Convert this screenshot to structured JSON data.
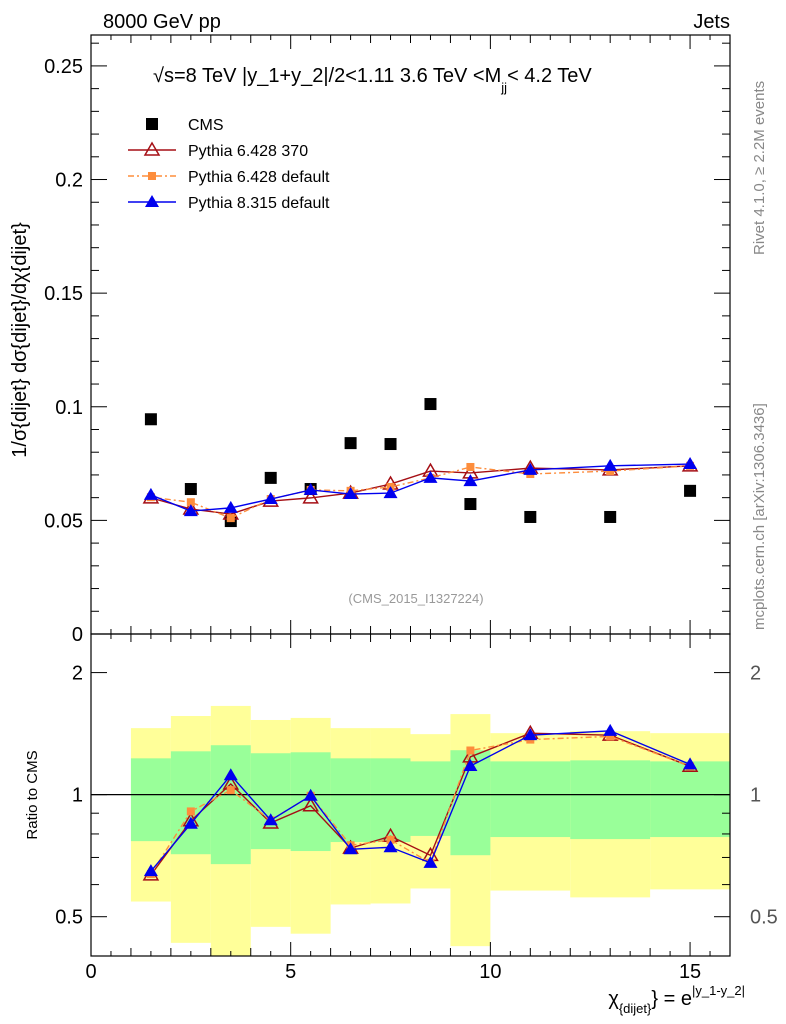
{
  "header": {
    "left": "8000 GeV pp",
    "right": "Jets"
  },
  "side_text": {
    "top": "Rivet 4.1.0, ≥ 2.2M events",
    "bottom": "mcplots.cern.ch [arXiv:1306.3436]"
  },
  "chart_data": [
    {
      "type": "scatter",
      "title": "√s=8 TeV |y_1+y_2|/2<1.11 3.6 TeV <M",
      "title_sub": "jj",
      "title_end": "< 4.2 TeV",
      "ylabel": "1/σ{dijet} dσ{dijet}/dχ{dijet}",
      "analysis_label": "(CMS_2015_I1327224)",
      "xlim": [
        0,
        16
      ],
      "ylim": [
        0,
        0.2636
      ],
      "yticks": [
        0,
        0.05,
        0.1,
        0.15,
        0.2,
        0.25
      ],
      "ytick_labels": [
        "0",
        "0.05",
        "0.1",
        "0.15",
        "0.2",
        "0.25"
      ],
      "legend_position": "top-left",
      "x": [
        1.5,
        2.5,
        3.5,
        4.5,
        5.5,
        6.5,
        7.5,
        8.5,
        9.5,
        11,
        13,
        15
      ],
      "bin_edges": [
        1,
        2,
        3,
        4,
        5,
        6,
        7,
        8,
        9,
        10,
        12,
        14,
        16
      ],
      "series": [
        {
          "name": "CMS",
          "color": "#000000",
          "marker": "square",
          "values": [
            0.0945,
            0.0638,
            0.0497,
            0.0687,
            0.0638,
            0.084,
            0.0836,
            0.1012,
            0.0572,
            0.0515,
            0.0515,
            0.063
          ]
        },
        {
          "name": "Pythia 6.428 370",
          "color": "#a50f15",
          "marker": "open-triangle",
          "values": [
            0.0599,
            0.055,
            0.0528,
            0.0585,
            0.0599,
            0.062,
            0.066,
            0.0717,
            0.0709,
            0.073,
            0.0722,
            0.074
          ]
        },
        {
          "name": "Pythia 6.428 default",
          "color": "#fd8d3c",
          "marker": "square-small",
          "dash": "6,3,2,3",
          "values": [
            0.0602,
            0.058,
            0.051,
            0.0594,
            0.0634,
            0.063,
            0.0647,
            0.0687,
            0.0735,
            0.0704,
            0.0717,
            0.074
          ]
        },
        {
          "name": "Pythia 8.315 default",
          "color": "#0000ee",
          "marker": "triangle",
          "values": [
            0.0612,
            0.0541,
            0.0555,
            0.0594,
            0.0634,
            0.0616,
            0.062,
            0.0687,
            0.0673,
            0.0722,
            0.074,
            0.0748
          ]
        }
      ]
    },
    {
      "type": "line",
      "ylabel": "Ratio to CMS",
      "xlabel": "χ{dijet} = e^{|y_1-y_2|}",
      "xlabel_main": "χ",
      "xlabel_sub": "{dijet}",
      "xlabel_eq": "} = e",
      "xlabel_sup": "|y_1-y_2|",
      "yscale": "log",
      "ylim": [
        0.4,
        2.49
      ],
      "yticks": [
        0.5,
        1,
        2
      ],
      "ytick_labels": [
        "0.5",
        "1",
        "2"
      ],
      "xticks": [
        0,
        5,
        10,
        15
      ],
      "xtick_labels": [
        "0",
        "5",
        "10",
        "15"
      ],
      "reference": 1,
      "band_inner": {
        "color": "#99ff99",
        "upper": [
          1.229,
          1.279,
          1.324,
          1.265,
          1.272,
          1.229,
          1.229,
          1.208,
          1.287,
          1.208,
          1.215,
          1.208
        ],
        "lower": [
          0.768,
          0.713,
          0.674,
          0.734,
          0.726,
          0.764,
          0.764,
          0.791,
          0.709,
          0.786,
          0.777,
          0.786
        ]
      },
      "band_outer": {
        "color": "#ffff99",
        "upper": [
          1.459,
          1.563,
          1.655,
          1.528,
          1.546,
          1.459,
          1.459,
          1.41,
          1.58,
          1.418,
          1.434,
          1.418
        ],
        "lower": [
          0.545,
          0.431,
          0.38,
          0.472,
          0.454,
          0.536,
          0.539,
          0.587,
          0.423,
          0.58,
          0.558,
          0.584
        ]
      }
    }
  ]
}
